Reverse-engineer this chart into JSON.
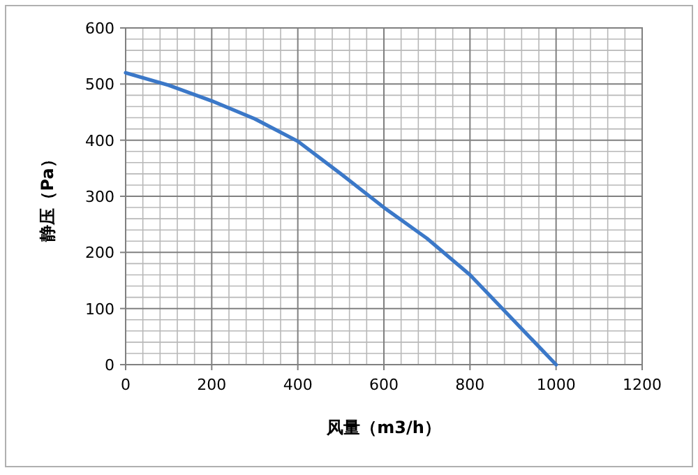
{
  "chart_data": {
    "type": "line",
    "xlabel": "风量（m3/h）",
    "ylabel": "静压（Pa）",
    "series": [
      {
        "color": "#3b78c8",
        "x": [
          0,
          100,
          200,
          300,
          400,
          500,
          600,
          700,
          800,
          900,
          1000
        ],
        "values": [
          520,
          498,
          470,
          438,
          398,
          340,
          280,
          225,
          160,
          80,
          0
        ]
      }
    ],
    "xlim": [
      0,
      1200
    ],
    "xticks": [
      0,
      200,
      400,
      600,
      800,
      1000,
      1200
    ],
    "ylim": [
      0,
      600
    ],
    "yticks": [
      0,
      100,
      200,
      300,
      400,
      500,
      600
    ],
    "grid": true,
    "marker": "none",
    "line_style": "solid"
  }
}
